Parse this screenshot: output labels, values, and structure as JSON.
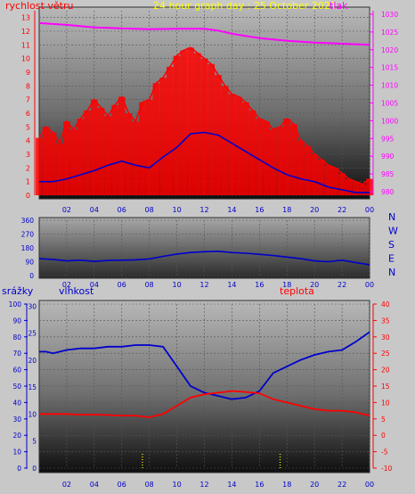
{
  "chart_data": [
    {
      "type": "line",
      "title": "24 hour graph day : 25 October 2021",
      "left_axis_label": "rychlost větru",
      "right_axis_label": "tlak",
      "x_ticks": [
        "02",
        "04",
        "06",
        "08",
        "10",
        "12",
        "14",
        "16",
        "18",
        "20",
        "22",
        "00"
      ],
      "y_left_ticks": [
        "0",
        "1",
        "2",
        "3",
        "4",
        "5",
        "6",
        "7",
        "8",
        "9",
        "10",
        "11",
        "12",
        "13"
      ],
      "y_left_range": [
        0,
        13.5
      ],
      "y_right_ticks": [
        "980",
        "985",
        "990",
        "995",
        "1000",
        "1005",
        "1010",
        "1015",
        "1020",
        "1025",
        "1030"
      ],
      "y_right_range": [
        979,
        1031
      ],
      "series": [
        {
          "color": "#ff0000",
          "x": [
            0,
            0.5,
            1,
            1.5,
            2,
            2.5,
            3,
            3.5,
            4,
            4.5,
            5,
            5.5,
            6,
            6.5,
            7,
            7.5,
            8,
            8.5,
            9,
            9.5,
            10,
            10.5,
            11,
            11.5,
            12,
            12.5,
            13,
            13.5,
            14,
            14.5,
            15,
            15.5,
            16,
            16.5,
            17,
            17.5,
            18,
            18.5,
            19,
            19.5,
            20,
            20.5,
            21,
            21.5,
            22,
            22.5,
            23,
            23.5,
            24
          ],
          "values": [
            4.2,
            5.0,
            4.6,
            3.8,
            5.4,
            4.8,
            5.6,
            6.2,
            7.0,
            6.4,
            5.8,
            6.6,
            7.2,
            6.0,
            5.4,
            6.8,
            7.0,
            8.2,
            8.6,
            9.4,
            10.2,
            10.6,
            10.8,
            10.4,
            10.0,
            9.6,
            8.8,
            8.0,
            7.4,
            7.2,
            6.8,
            6.2,
            5.6,
            5.4,
            4.8,
            5.0,
            5.6,
            5.2,
            4.0,
            3.6,
            3.0,
            2.6,
            2.2,
            2.0,
            1.6,
            1.2,
            1.0,
            0.8,
            1.2
          ]
        },
        {
          "color": "#0000cc",
          "x": [
            0,
            1,
            2,
            3,
            4,
            5,
            6,
            7,
            8,
            9,
            10,
            11,
            12,
            13,
            14,
            15,
            16,
            17,
            18,
            19,
            20,
            21,
            22,
            23,
            24
          ],
          "values": [
            1.0,
            1.0,
            1.2,
            1.5,
            1.8,
            2.2,
            2.5,
            2.2,
            2.0,
            2.8,
            3.5,
            4.5,
            4.6,
            4.4,
            3.8,
            3.2,
            2.6,
            2.0,
            1.5,
            1.2,
            1.0,
            0.6,
            0.4,
            0.2,
            0.2
          ]
        },
        {
          "color": "#ff00ff",
          "axis": "right",
          "x": [
            0,
            2,
            4,
            6,
            8,
            10,
            12,
            13,
            14,
            16,
            18,
            20,
            22,
            24
          ],
          "values": [
            1027.5,
            1027.0,
            1026.3,
            1026.0,
            1025.8,
            1025.9,
            1025.9,
            1025.4,
            1024.5,
            1023.3,
            1022.5,
            1022.0,
            1021.7,
            1021.4
          ]
        }
      ]
    },
    {
      "type": "line",
      "direction_labels": [
        "N",
        "W",
        "S",
        "E",
        "N"
      ],
      "y_ticks": [
        "0",
        "90",
        "180",
        "270",
        "360"
      ],
      "y_range": [
        0,
        360
      ],
      "x_ticks": [
        "02",
        "04",
        "06",
        "08",
        "10",
        "12",
        "14",
        "16",
        "18",
        "20",
        "22",
        "00"
      ],
      "series": [
        {
          "color": "#0000cc",
          "x": [
            0,
            1,
            2,
            3,
            4,
            5,
            6,
            7,
            8,
            9,
            10,
            11,
            12,
            13,
            14,
            15,
            16,
            17,
            18,
            19,
            20,
            21,
            22,
            23,
            24
          ],
          "values": [
            110,
            105,
            95,
            100,
            92,
            98,
            100,
            102,
            108,
            125,
            140,
            150,
            155,
            158,
            150,
            145,
            138,
            130,
            120,
            110,
            95,
            90,
            100,
            85,
            70
          ]
        }
      ]
    },
    {
      "type": "line",
      "left_axis_label": "srážky",
      "middle_axis_label": "vlhkost",
      "right_axis_label": "teplota",
      "x_ticks": [
        "02",
        "04",
        "06",
        "08",
        "10",
        "12",
        "14",
        "16",
        "18",
        "20",
        "22",
        "00"
      ],
      "y_srazky_ticks": [
        "0",
        "10",
        "20",
        "30",
        "40",
        "50",
        "60",
        "70",
        "80",
        "90",
        "100"
      ],
      "y_vlhkost_ticks": [
        "0",
        "5",
        "10",
        "15",
        "20",
        "25",
        "30"
      ],
      "y_teplota_ticks": [
        "-10",
        "-5",
        "0",
        "5",
        "10",
        "15",
        "20",
        "25",
        "30",
        "35",
        "40"
      ],
      "y_teplota_range": [
        -10,
        40
      ],
      "series": [
        {
          "color": "#0000cc",
          "axis": "teplota_scale",
          "x": [
            0,
            0.5,
            1,
            2,
            3,
            4,
            5,
            6,
            7,
            8,
            9,
            10,
            11,
            12,
            13,
            14,
            15,
            16,
            17,
            18,
            19,
            20,
            21,
            22,
            23,
            24
          ],
          "values": [
            25.5,
            25.5,
            25.0,
            26.0,
            26.5,
            26.5,
            27.0,
            27.0,
            27.5,
            27.5,
            27.0,
            21.0,
            15.0,
            13.0,
            12.0,
            11.0,
            11.5,
            13.5,
            19.0,
            21.0,
            23.0,
            24.5,
            25.5,
            26.0,
            28.5,
            31.5
          ]
        },
        {
          "color": "#ff0000",
          "axis": "teplota_scale",
          "x": [
            0,
            1,
            2,
            3,
            4,
            5,
            6,
            7,
            8,
            9,
            10,
            11,
            12,
            13,
            14,
            15,
            16,
            17,
            18,
            19,
            20,
            21,
            22,
            23,
            24
          ],
          "values": [
            6.5,
            6.5,
            6.5,
            6.3,
            6.3,
            6.2,
            6.0,
            6.0,
            5.5,
            6.5,
            9.0,
            11.5,
            12.5,
            13.0,
            13.5,
            13.2,
            12.8,
            11.0,
            10.0,
            9.0,
            8.0,
            7.5,
            7.5,
            7.0,
            6.0
          ]
        }
      ]
    }
  ]
}
